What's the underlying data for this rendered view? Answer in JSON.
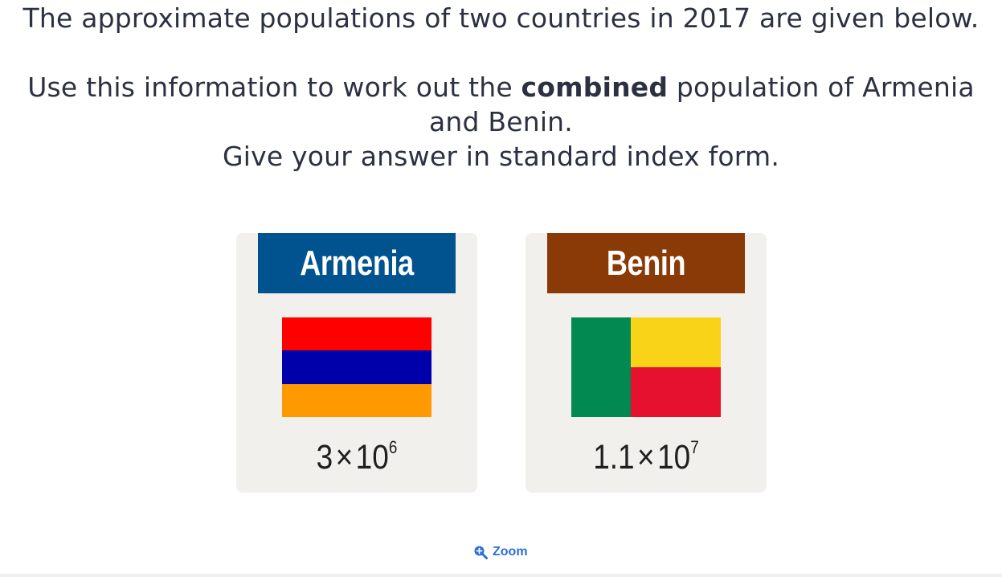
{
  "question": {
    "line1": "The approximate populations of two countries in 2017 are given below.",
    "line2_before": "Use this information to work out the ",
    "line2_bold": "combined",
    "line2_after": " population of Armenia and Benin.",
    "line3": "Give your answer in standard index form."
  },
  "cards": [
    {
      "country": "Armenia",
      "header_color": "#01538f",
      "flag_colors": [
        "#fe0000",
        "#0000aa",
        "#fe9900"
      ],
      "coefficient": "3",
      "times": "×",
      "base": "10",
      "exponent": "6"
    },
    {
      "country": "Benin",
      "header_color": "#8a3a06",
      "flag_colors": [
        "#028851",
        "#f9d317",
        "#e6102f"
      ],
      "coefficient": "1.1",
      "times": "×",
      "base": "10",
      "exponent": "7"
    }
  ],
  "zoom": {
    "label": "Zoom",
    "icon": "zoom-in-icon",
    "color": "#2c6fd8"
  }
}
